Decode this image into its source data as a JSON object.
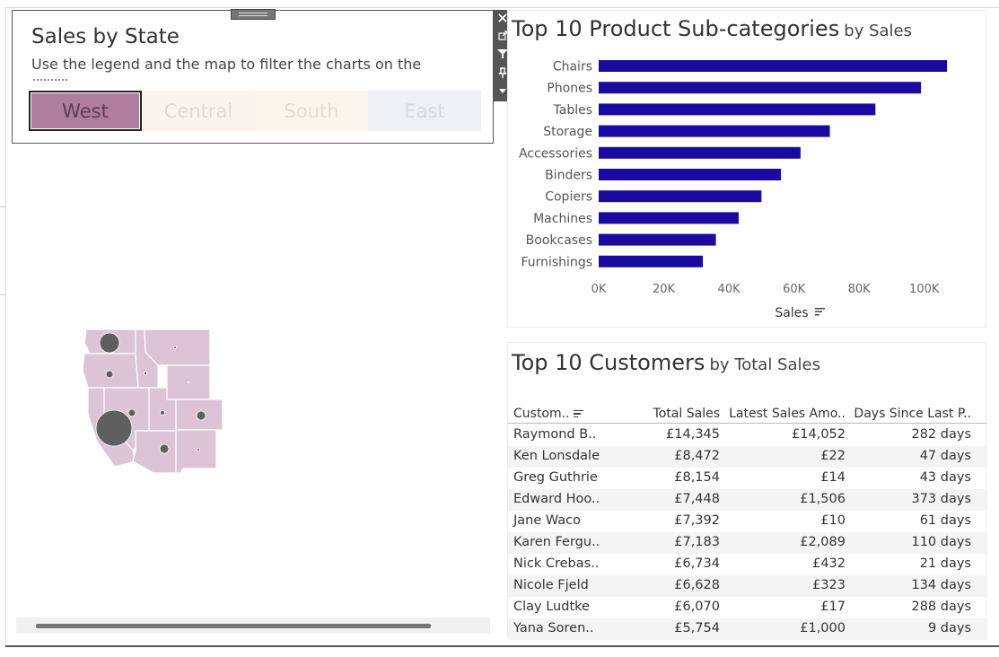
{
  "legend": {
    "title": "Sales by State",
    "subtitle": "Use the legend and the map to filter the charts on the",
    "regions": [
      {
        "label": "West",
        "selected": true,
        "color": "#b07ca0"
      },
      {
        "label": "Central",
        "selected": false,
        "color": "#fbf3ee"
      },
      {
        "label": "South",
        "selected": false,
        "color": "#fcf5ee"
      },
      {
        "label": "East",
        "selected": false,
        "color": "#eef0f4"
      }
    ]
  },
  "toolbar": {
    "icons": [
      "close-icon",
      "popout-icon",
      "filter-icon",
      "pin-icon",
      "more-options-icon"
    ]
  },
  "map": {
    "fill_color": "#dcc4d6",
    "bubble_color": "#5f5f5f"
  },
  "bar_chart": {
    "title_main": "Top 10 Product Sub-categories",
    "title_suffix": "by Sales",
    "bar_color": "#1a0aa0"
  },
  "chart_data": {
    "type": "bar",
    "orientation": "horizontal",
    "categories": [
      "Chairs",
      "Phones",
      "Tables",
      "Storage",
      "Accessories",
      "Binders",
      "Copiers",
      "Machines",
      "Bookcases",
      "Furnishings"
    ],
    "values": [
      107000,
      99000,
      85000,
      71000,
      62000,
      56000,
      50000,
      43000,
      36000,
      32000
    ],
    "xlabel": "Sales",
    "ylabel": "",
    "xlim": [
      0,
      110000
    ],
    "ticks": [
      "0K",
      "20K",
      "40K",
      "60K",
      "80K",
      "100K"
    ],
    "tick_values": [
      0,
      20000,
      40000,
      60000,
      80000,
      100000
    ],
    "grid": false
  },
  "customers": {
    "title_main": "Top 10 Customers",
    "title_suffix": "by Total Sales",
    "columns": [
      "Custom..",
      "Total Sales",
      "Latest Sales Amo..",
      "Days Since Last P.."
    ],
    "rows": [
      [
        "Raymond B..",
        "£14,345",
        "£14,052",
        "282 days"
      ],
      [
        "Ken Lonsdale",
        "£8,472",
        "£22",
        "47 days"
      ],
      [
        "Greg Guthrie",
        "£8,154",
        "£14",
        "43 days"
      ],
      [
        "Edward Hoo..",
        "£7,448",
        "£1,506",
        "373 days"
      ],
      [
        "Jane Waco",
        "£7,392",
        "£10",
        "61 days"
      ],
      [
        "Karen Fergu..",
        "£7,183",
        "£2,089",
        "110 days"
      ],
      [
        "Nick Crebas..",
        "£6,734",
        "£432",
        "21 days"
      ],
      [
        "Nicole Fjeld",
        "£6,628",
        "£323",
        "134 days"
      ],
      [
        "Clay Ludtke",
        "£6,070",
        "£17",
        "288 days"
      ],
      [
        "Yana Soren..",
        "£5,754",
        "£1,000",
        "9 days"
      ]
    ]
  }
}
